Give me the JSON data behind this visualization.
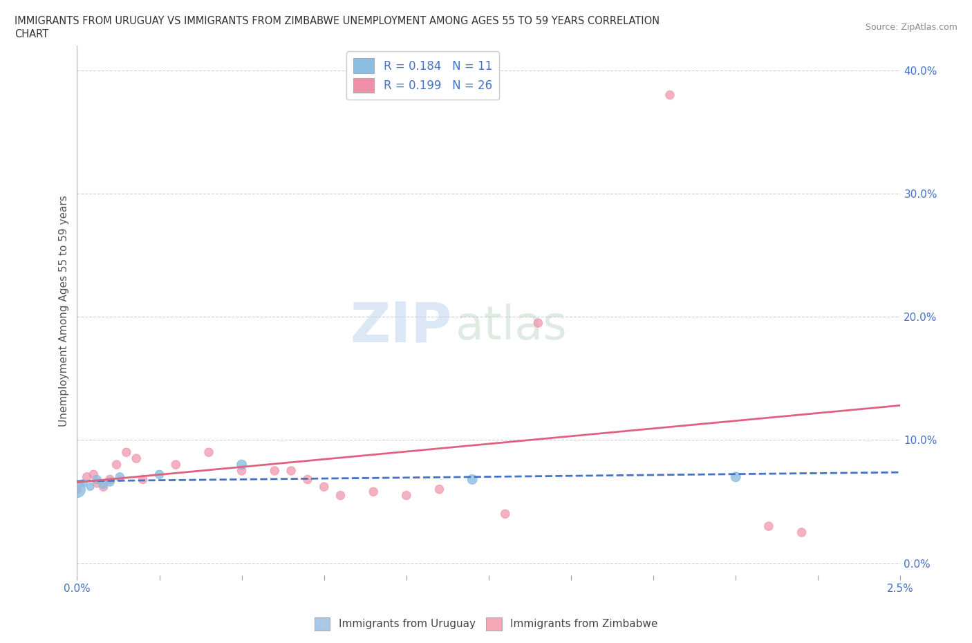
{
  "title_line1": "IMMIGRANTS FROM URUGUAY VS IMMIGRANTS FROM ZIMBABWE UNEMPLOYMENT AMONG AGES 55 TO 59 YEARS CORRELATION",
  "title_line2": "CHART",
  "source": "Source: ZipAtlas.com",
  "ylabel": "Unemployment Among Ages 55 to 59 years",
  "xlim": [
    0.0,
    0.025
  ],
  "ylim": [
    -0.01,
    0.42
  ],
  "yticks": [
    0.0,
    0.1,
    0.2,
    0.3,
    0.4
  ],
  "legend_entries": [
    {
      "label": "Immigrants from Uruguay",
      "color": "#a8c8e8"
    },
    {
      "label": "Immigrants from Zimbabwe",
      "color": "#f4a8b8"
    }
  ],
  "r_uruguay": 0.184,
  "n_uruguay": 11,
  "r_zimbabwe": 0.199,
  "n_zimbabwe": 26,
  "uruguay_color": "#8bbde0",
  "zimbabwe_color": "#f090a8",
  "trend_uruguay_color": "#4472c4",
  "trend_zimbabwe_color": "#e06080",
  "watermark_zip": "ZIP",
  "watermark_atlas": "atlas",
  "background_color": "#ffffff",
  "scatter_uruguay_x": [
    0.0,
    0.0002,
    0.0004,
    0.0006,
    0.0008,
    0.001,
    0.0013,
    0.0025,
    0.005,
    0.012,
    0.02
  ],
  "scatter_uruguay_y": [
    0.06,
    0.065,
    0.062,
    0.068,
    0.064,
    0.066,
    0.07,
    0.072,
    0.08,
    0.068,
    0.07
  ],
  "scatter_uruguay_sizes": [
    300,
    60,
    60,
    80,
    80,
    80,
    80,
    80,
    100,
    100,
    100
  ],
  "scatter_zimbabwe_x": [
    0.0,
    0.0003,
    0.0005,
    0.0006,
    0.0008,
    0.001,
    0.0012,
    0.0015,
    0.0018,
    0.002,
    0.003,
    0.004,
    0.005,
    0.006,
    0.0065,
    0.007,
    0.0075,
    0.008,
    0.009,
    0.01,
    0.011,
    0.013,
    0.014,
    0.018,
    0.021,
    0.022
  ],
  "scatter_zimbabwe_y": [
    0.06,
    0.07,
    0.072,
    0.065,
    0.062,
    0.068,
    0.08,
    0.09,
    0.085,
    0.068,
    0.08,
    0.09,
    0.075,
    0.075,
    0.075,
    0.068,
    0.062,
    0.055,
    0.058,
    0.055,
    0.06,
    0.04,
    0.195,
    0.38,
    0.03,
    0.025
  ],
  "scatter_zimbabwe_sizes": [
    80,
    80,
    80,
    80,
    80,
    80,
    80,
    80,
    80,
    80,
    80,
    80,
    80,
    80,
    80,
    80,
    80,
    80,
    80,
    80,
    80,
    80,
    80,
    80,
    80,
    80
  ]
}
